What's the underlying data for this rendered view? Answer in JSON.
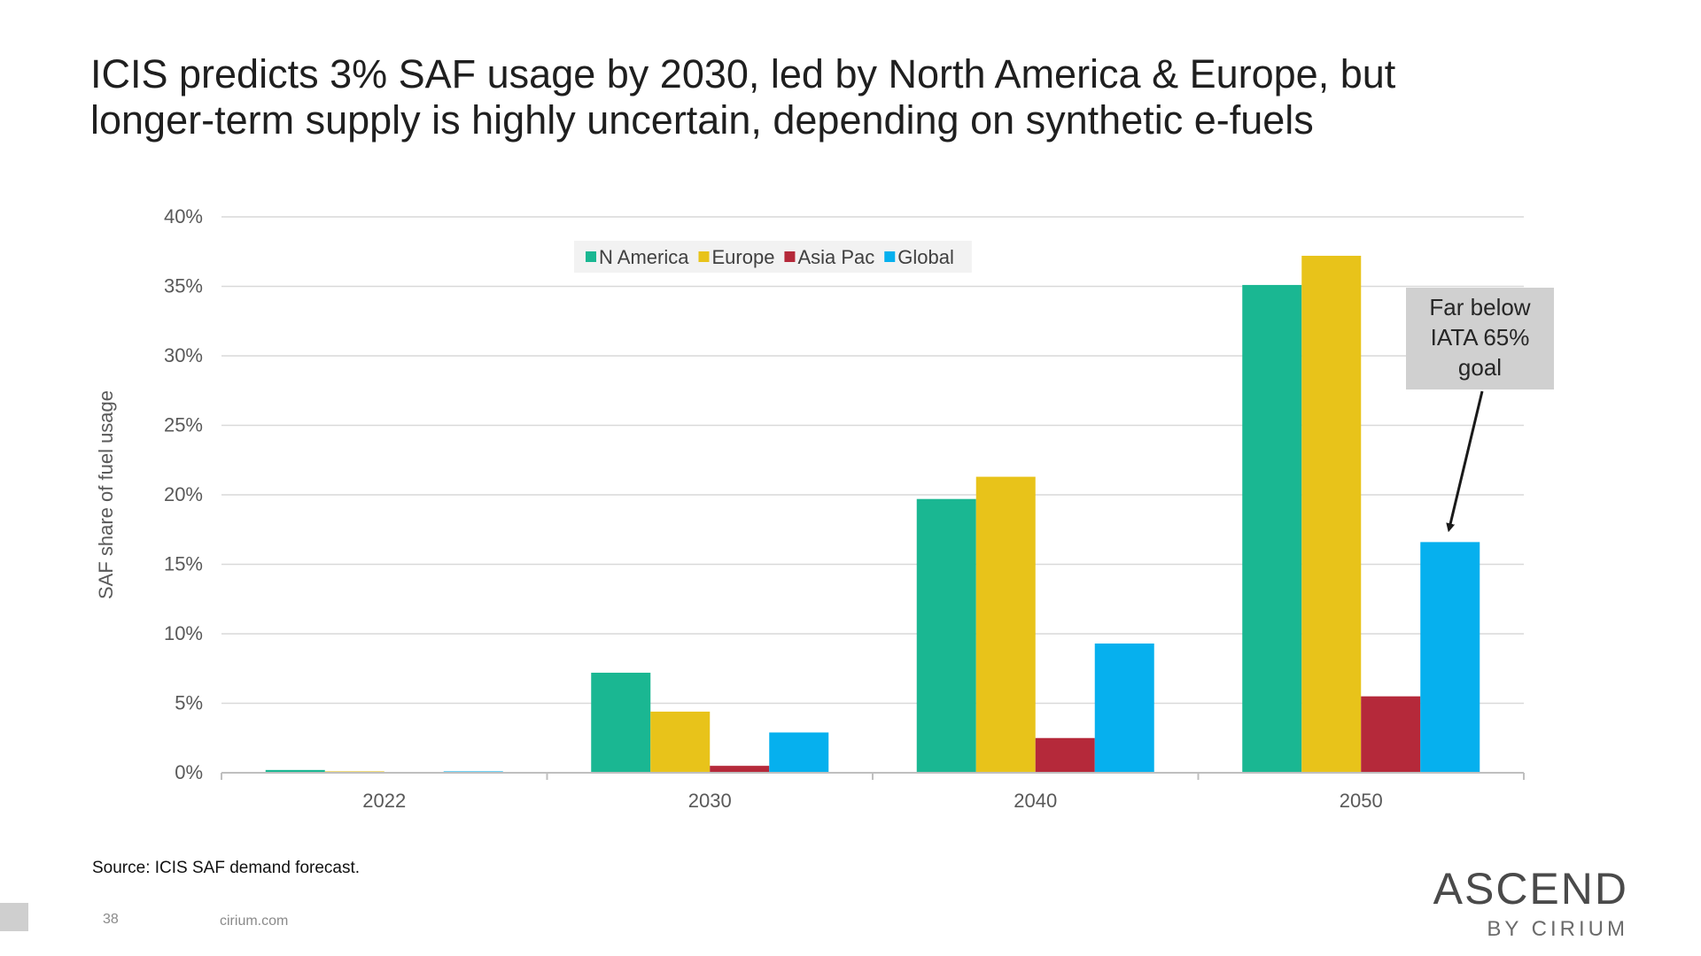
{
  "slide": {
    "title_line1": "ICIS predicts 3% SAF usage by 2030, led by North America & Europe, but",
    "title_line2": "longer-term supply is highly uncertain, depending on synthetic e-fuels",
    "source": "Source: ICIS SAF demand forecast.",
    "page_number": "38",
    "site": "cirium.com",
    "logo_main": "ASCEND",
    "logo_sub": "BY CIRIUM"
  },
  "chart_data": {
    "type": "bar",
    "title": "",
    "xlabel": "",
    "ylabel": "SAF share of fuel usage",
    "categories": [
      "2022",
      "2030",
      "2040",
      "2050"
    ],
    "series": [
      {
        "name": "N America",
        "color": "#1ab792",
        "values": [
          0.2,
          7.2,
          19.7,
          35.1
        ]
      },
      {
        "name": "Europe",
        "color": "#e8c31a",
        "values": [
          0.1,
          4.4,
          21.3,
          37.2
        ]
      },
      {
        "name": "Asia Pac",
        "color": "#b5293a",
        "values": [
          0.0,
          0.5,
          2.5,
          5.5
        ]
      },
      {
        "name": "Global",
        "color": "#06b0ee",
        "values": [
          0.1,
          2.9,
          9.3,
          16.6
        ]
      }
    ],
    "ylim": [
      0,
      40
    ],
    "yticks": [
      0,
      5,
      10,
      15,
      20,
      25,
      30,
      35,
      40
    ],
    "ytick_labels": [
      "0%",
      "5%",
      "10%",
      "15%",
      "20%",
      "25%",
      "30%",
      "35%",
      "40%"
    ],
    "grid": true,
    "legend_position": "top-center",
    "annotation": {
      "lines": [
        "Far below",
        "IATA 65%",
        "goal"
      ],
      "target_category": "2050",
      "target_series": "Global"
    }
  }
}
